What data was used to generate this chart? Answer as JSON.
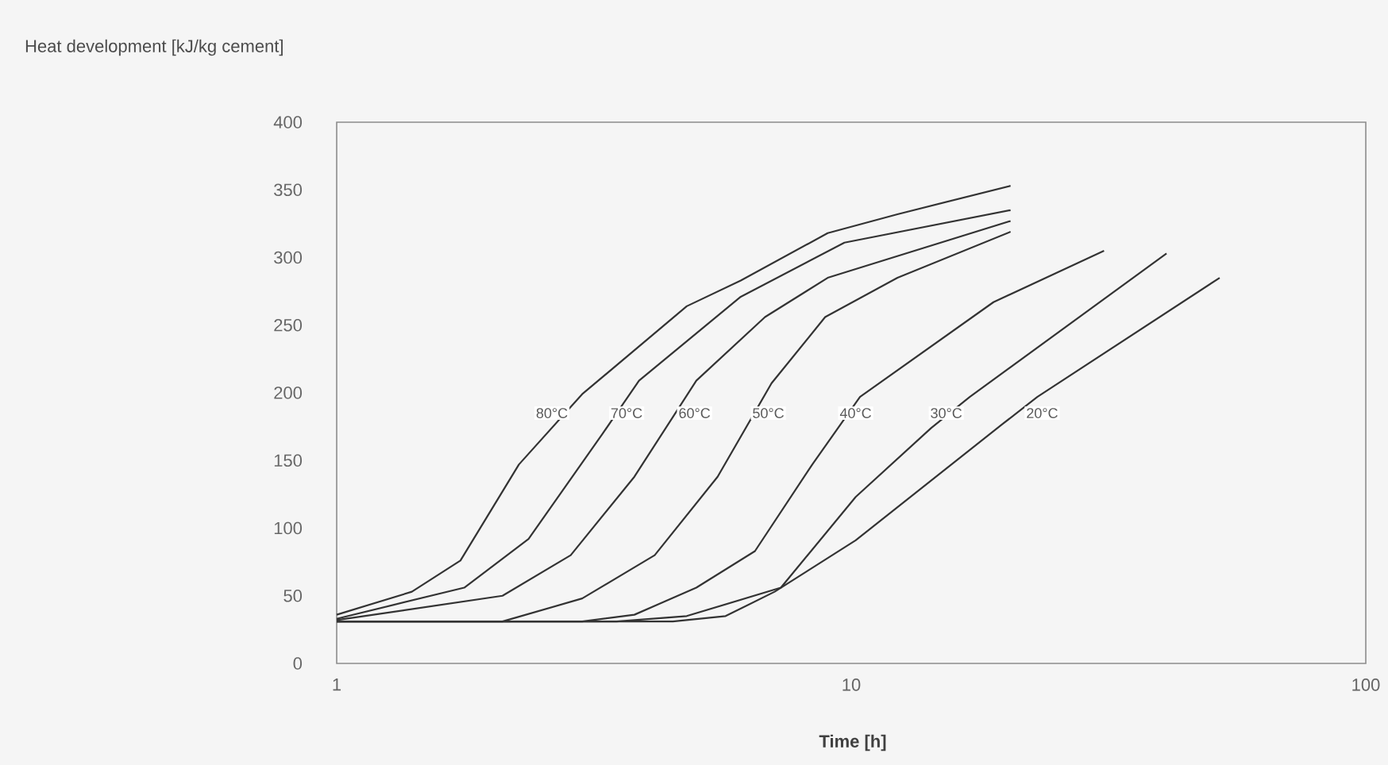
{
  "chart_data": {
    "type": "line",
    "ylabel": "Heat development [kJ/kg cement]",
    "xlabel": "Time [h]",
    "log": "x",
    "marker": "none",
    "line_style": "solid",
    "xlim": [
      1,
      100
    ],
    "xticks": [
      1,
      10,
      100
    ],
    "ylim": [
      0,
      400
    ],
    "yticks": [
      0,
      50,
      100,
      150,
      200,
      250,
      300,
      350,
      400
    ],
    "series": [
      {
        "color": "#333333",
        "x": [
          1,
          1.4,
          1.74,
          2.26,
          3.0,
          4.79,
          6.1,
          9.0,
          12.3,
          20.4
        ],
        "values": [
          36,
          53,
          76,
          147,
          199,
          264,
          283,
          318,
          332,
          353
        ]
      },
      {
        "color": "#333333",
        "x": [
          1,
          1.77,
          2.36,
          3.29,
          3.87,
          6.1,
          9.7,
          20.4
        ],
        "values": [
          33,
          56,
          92,
          170,
          209,
          271,
          311,
          335
        ]
      },
      {
        "color": "#333333",
        "x": [
          1,
          2.1,
          2.85,
          3.79,
          5.0,
          6.8,
          9.0,
          20.4
        ],
        "values": [
          32,
          50,
          80,
          138,
          209,
          256,
          285,
          327
        ]
      },
      {
        "color": "#333333",
        "x": [
          1,
          2.1,
          3.0,
          4.15,
          5.5,
          7.0,
          8.9,
          12.3,
          20.4
        ],
        "values": [
          31,
          31,
          48,
          80,
          138,
          207,
          256,
          285,
          319
        ]
      },
      {
        "color": "#333333",
        "x": [
          1,
          3.0,
          3.79,
          5.0,
          6.5,
          8.4,
          10.4,
          18.9,
          31
        ],
        "values": [
          31,
          31,
          36,
          56,
          83,
          147,
          197,
          267,
          305
        ]
      },
      {
        "color": "#333333",
        "x": [
          1,
          3.5,
          4.79,
          7.3,
          10.2,
          14.3,
          17.0,
          41
        ],
        "values": [
          31,
          31,
          35,
          56,
          123,
          174,
          197,
          303
        ]
      },
      {
        "color": "#333333",
        "x": [
          1,
          4.5,
          5.7,
          7.1,
          10.2,
          19.7,
          23,
          52
        ],
        "values": [
          31,
          31,
          35,
          53,
          91,
          177,
          197,
          285
        ]
      }
    ],
    "annotations": [
      {
        "text": "80°C",
        "x": 2.62,
        "y": 185
      },
      {
        "text": "70°C",
        "x": 3.66,
        "y": 185
      },
      {
        "text": "60°C",
        "x": 4.96,
        "y": 185
      },
      {
        "text": "50°C",
        "x": 6.9,
        "y": 185
      },
      {
        "text": "40°C",
        "x": 10.2,
        "y": 185
      },
      {
        "text": "30°C",
        "x": 15.3,
        "y": 185
      },
      {
        "text": "20°C",
        "x": 23.5,
        "y": 185
      }
    ]
  }
}
